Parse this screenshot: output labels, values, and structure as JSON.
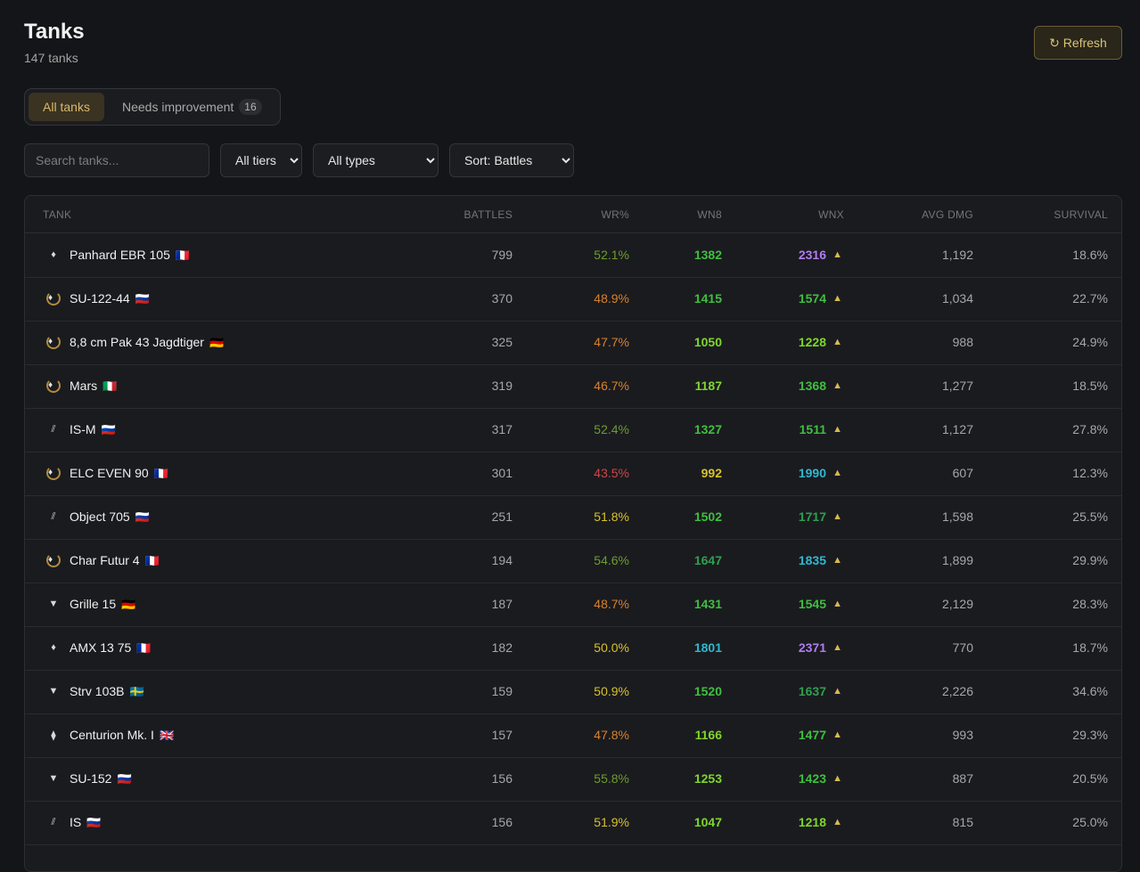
{
  "header": {
    "title": "Tanks",
    "subtitle": "147 tanks",
    "refresh_label": "↻ Refresh"
  },
  "tabs": {
    "all_label": "All tanks",
    "needs_label": "Needs improvement",
    "needs_count": "16"
  },
  "filters": {
    "search_placeholder": "Search tanks...",
    "tier_label": "All tiers",
    "type_label": "All types",
    "sort_label": "Sort: Battles"
  },
  "columns": {
    "tank": "TANK",
    "battles": "BATTLES",
    "wr": "WR%",
    "wn8": "WN8",
    "wnx": "WNX",
    "avg_dmg": "AVG DMG",
    "survival": "SURVIVAL"
  },
  "colors": {
    "green": "#3fbf3f",
    "lime": "#7fd62b",
    "yellow": "#d8c22b",
    "orange": "#d9822b",
    "red": "#d14545",
    "olive": "#6f9c2f",
    "darkgreen": "#2f9f4f",
    "teal": "#2fb8d0",
    "purple": "#b07cf0",
    "accent": "#d9b86a"
  },
  "rows": [
    {
      "icon": "diamond-icon",
      "name": "Panhard EBR 105",
      "flag": "🇫🇷",
      "battles": "799",
      "wr": "52.1%",
      "wr_color": "#6f9c2f",
      "wn8": "1382",
      "wn8_color": "#3fbf3f",
      "wnx": "2316",
      "wnx_color": "#b07cf0",
      "avg_dmg": "1,192",
      "survival": "18.6%"
    },
    {
      "icon": "laurel-icon",
      "name": "SU-122-44",
      "flag": "🇷🇺",
      "battles": "370",
      "wr": "48.9%",
      "wr_color": "#d9822b",
      "wn8": "1415",
      "wn8_color": "#3fbf3f",
      "wnx": "1574",
      "wnx_color": "#3fbf3f",
      "avg_dmg": "1,034",
      "survival": "22.7%"
    },
    {
      "icon": "laurel-icon",
      "name": "8,8 cm Pak 43 Jagdtiger",
      "flag": "🇩🇪",
      "battles": "325",
      "wr": "47.7%",
      "wr_color": "#d9822b",
      "wn8": "1050",
      "wn8_color": "#7fd62b",
      "wnx": "1228",
      "wnx_color": "#7fd62b",
      "avg_dmg": "988",
      "survival": "24.9%"
    },
    {
      "icon": "laurel-icon",
      "name": "Mars",
      "flag": "🇮🇹",
      "battles": "319",
      "wr": "46.7%",
      "wr_color": "#d9822b",
      "wn8": "1187",
      "wn8_color": "#7fd62b",
      "wnx": "1368",
      "wnx_color": "#3fbf3f",
      "avg_dmg": "1,277",
      "survival": "18.5%"
    },
    {
      "icon": "heavy-icon",
      "name": "IS-M",
      "flag": "🇷🇺",
      "battles": "317",
      "wr": "52.4%",
      "wr_color": "#6f9c2f",
      "wn8": "1327",
      "wn8_color": "#3fbf3f",
      "wnx": "1511",
      "wnx_color": "#3fbf3f",
      "avg_dmg": "1,127",
      "survival": "27.8%"
    },
    {
      "icon": "laurel-icon",
      "name": "ELC EVEN 90",
      "flag": "🇫🇷",
      "battles": "301",
      "wr": "43.5%",
      "wr_color": "#d14545",
      "wn8": "992",
      "wn8_color": "#d8c22b",
      "wnx": "1990",
      "wnx_color": "#2fb8d0",
      "avg_dmg": "607",
      "survival": "12.3%"
    },
    {
      "icon": "heavy-icon",
      "name": "Object 705",
      "flag": "🇷🇺",
      "battles": "251",
      "wr": "51.8%",
      "wr_color": "#d8c22b",
      "wn8": "1502",
      "wn8_color": "#3fbf3f",
      "wnx": "1717",
      "wnx_color": "#2f9f4f",
      "avg_dmg": "1,598",
      "survival": "25.5%"
    },
    {
      "icon": "laurel-icon",
      "name": "Char Futur 4",
      "flag": "🇫🇷",
      "battles": "194",
      "wr": "54.6%",
      "wr_color": "#6f9c2f",
      "wn8": "1647",
      "wn8_color": "#2f9f4f",
      "wnx": "1835",
      "wnx_color": "#2fb8d0",
      "avg_dmg": "1,899",
      "survival": "29.9%"
    },
    {
      "icon": "spg-icon",
      "name": "Grille 15",
      "flag": "🇩🇪",
      "battles": "187",
      "wr": "48.7%",
      "wr_color": "#d9822b",
      "wn8": "1431",
      "wn8_color": "#3fbf3f",
      "wnx": "1545",
      "wnx_color": "#3fbf3f",
      "avg_dmg": "2,129",
      "survival": "28.3%"
    },
    {
      "icon": "diamond-icon",
      "name": "AMX 13 75",
      "flag": "🇫🇷",
      "battles": "182",
      "wr": "50.0%",
      "wr_color": "#d8c22b",
      "wn8": "1801",
      "wn8_color": "#2fb8d0",
      "wnx": "2371",
      "wnx_color": "#b07cf0",
      "avg_dmg": "770",
      "survival": "18.7%"
    },
    {
      "icon": "spg-icon",
      "name": "Strv 103B",
      "flag": "🇸🇪",
      "battles": "159",
      "wr": "50.9%",
      "wr_color": "#d8c22b",
      "wn8": "1520",
      "wn8_color": "#3fbf3f",
      "wnx": "1637",
      "wnx_color": "#2f9f4f",
      "avg_dmg": "2,226",
      "survival": "34.6%"
    },
    {
      "icon": "medium-icon",
      "name": "Centurion Mk. I",
      "flag": "🇬🇧",
      "battles": "157",
      "wr": "47.8%",
      "wr_color": "#d9822b",
      "wn8": "1166",
      "wn8_color": "#7fd62b",
      "wnx": "1477",
      "wnx_color": "#3fbf3f",
      "avg_dmg": "993",
      "survival": "29.3%"
    },
    {
      "icon": "spg-icon",
      "name": "SU-152",
      "flag": "🇷🇺",
      "battles": "156",
      "wr": "55.8%",
      "wr_color": "#6f9c2f",
      "wn8": "1253",
      "wn8_color": "#7fd62b",
      "wnx": "1423",
      "wnx_color": "#3fbf3f",
      "avg_dmg": "887",
      "survival": "20.5%"
    },
    {
      "icon": "heavy-icon",
      "name": "IS",
      "flag": "🇷🇺",
      "battles": "156",
      "wr": "51.9%",
      "wr_color": "#d8c22b",
      "wn8": "1047",
      "wn8_color": "#7fd62b",
      "wnx": "1218",
      "wnx_color": "#7fd62b",
      "avg_dmg": "815",
      "survival": "25.0%"
    }
  ]
}
